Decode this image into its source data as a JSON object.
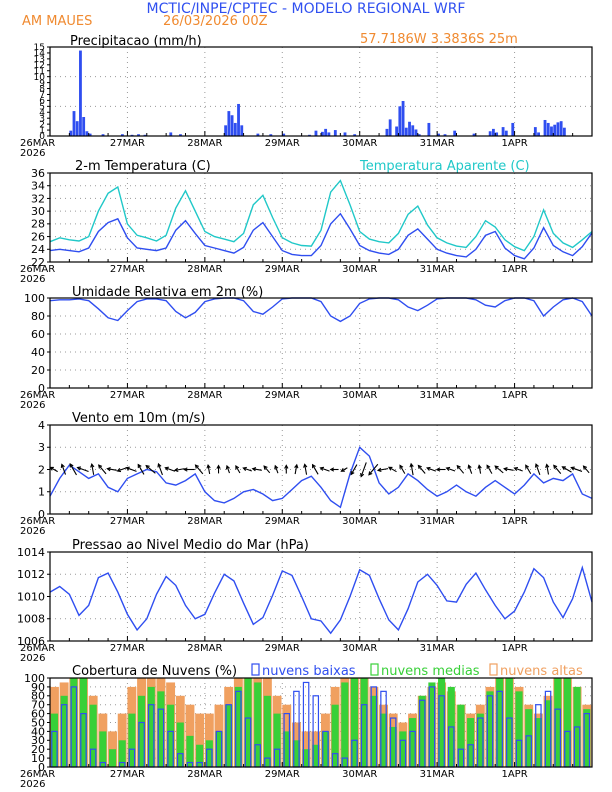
{
  "header": {
    "title": "MCTIC/INPE/CPTEC - MODELO REGIONAL WRF",
    "location": "AM MAUES",
    "run_time": "26/03/2026 00Z",
    "coords": "57.7186W 3.3836S 25m"
  },
  "colors": {
    "title": "#3050f0",
    "orange": "#f08a30",
    "blue": "#2f4ef0",
    "cyan": "#20c8c8",
    "green": "#38d038",
    "dark_orange": "#f0a060",
    "black": "#000000"
  },
  "time_axis": {
    "labels": [
      "26MAR",
      "27MAR",
      "28MAR",
      "29MAR",
      "30MAR",
      "31MAR",
      "1APR"
    ],
    "year_label": "2026",
    "start_hour": 0,
    "end_hour": 168
  },
  "chart_data": [
    {
      "id": "precip",
      "type": "bar",
      "title": "Precipitacao (mm/h)",
      "ylim": [
        0,
        15
      ],
      "yticks": [
        0,
        1,
        2,
        3,
        4,
        5,
        6,
        7,
        8,
        9,
        10,
        11,
        12,
        13,
        14,
        15
      ],
      "series": [
        {
          "name": "precip",
          "color": "#2f4ef0",
          "x": [
            6,
            7,
            8,
            9,
            10,
            11,
            12,
            16,
            22,
            25,
            27,
            29,
            37,
            40,
            54,
            55,
            56,
            57,
            58,
            59,
            64,
            68,
            72,
            80,
            82,
            84,
            85,
            86,
            88,
            91,
            94,
            104,
            105,
            107,
            108,
            109,
            110,
            111,
            112,
            113,
            114,
            117,
            120,
            122,
            125,
            131,
            136,
            137,
            138,
            140,
            141,
            143,
            150,
            151,
            153,
            154,
            155,
            156,
            157,
            158,
            159
          ],
          "values": [
            0.9,
            4.2,
            2.5,
            14.4,
            3.2,
            0.8,
            0.4,
            0.3,
            0.3,
            0.2,
            0.3,
            0.2,
            0.6,
            0.3,
            1.8,
            4.2,
            3.5,
            2.2,
            5.4,
            1.8,
            0.4,
            0.3,
            0.4,
            0.2,
            0.9,
            0.7,
            1.2,
            0.6,
            1.0,
            0.6,
            0.3,
            1.2,
            2.8,
            1.6,
            5.0,
            5.9,
            1.4,
            2.4,
            1.8,
            1.1,
            0.3,
            2.2,
            0.4,
            0.3,
            0.9,
            0.4,
            0.8,
            1.2,
            0.6,
            1.5,
            0.9,
            2.2,
            1.5,
            0.6,
            2.7,
            2.2,
            1.6,
            1.9,
            2.3,
            2.5,
            1.4
          ]
        }
      ]
    },
    {
      "id": "temp",
      "type": "line",
      "title": "2-m Temperatura (C)",
      "ylim": [
        22,
        36
      ],
      "yticks": [
        22,
        24,
        26,
        28,
        30,
        32,
        34,
        36
      ],
      "series": [
        {
          "name": "Temperatura Aparente (C)",
          "color": "#20c8c8",
          "x": [
            0,
            3,
            6,
            9,
            12,
            15,
            18,
            21,
            24,
            27,
            30,
            33,
            36,
            39,
            42,
            45,
            48,
            51,
            54,
            57,
            60,
            63,
            66,
            69,
            72,
            75,
            78,
            81,
            84,
            87,
            90,
            93,
            96,
            99,
            102,
            105,
            108,
            111,
            114,
            117,
            120,
            123,
            126,
            129,
            132,
            135,
            138,
            141,
            144,
            147,
            150,
            153,
            156,
            159,
            162,
            165,
            168
          ],
          "values": [
            25.2,
            25.8,
            25.5,
            25.3,
            26.0,
            30.0,
            32.8,
            33.8,
            28.0,
            26.2,
            25.8,
            25.3,
            26.2,
            30.5,
            33.2,
            30.0,
            26.8,
            26.0,
            25.6,
            25.2,
            26.5,
            31.0,
            32.5,
            29.0,
            25.8,
            25.0,
            24.6,
            24.5,
            27.0,
            33.0,
            34.8,
            31.0,
            26.8,
            25.6,
            25.2,
            25.0,
            26.5,
            29.5,
            30.8,
            27.8,
            25.8,
            25.0,
            24.5,
            24.3,
            26.0,
            28.5,
            27.5,
            25.5,
            24.4,
            23.8,
            26.0,
            30.2,
            26.5,
            25.0,
            24.3,
            25.5,
            26.8
          ]
        },
        {
          "name": "2-m Temperatura (C)",
          "color": "#2f4ef0",
          "x": [
            0,
            3,
            6,
            9,
            12,
            15,
            18,
            21,
            24,
            27,
            30,
            33,
            36,
            39,
            42,
            45,
            48,
            51,
            54,
            57,
            60,
            63,
            66,
            69,
            72,
            75,
            78,
            81,
            84,
            87,
            90,
            93,
            96,
            99,
            102,
            105,
            108,
            111,
            114,
            117,
            120,
            123,
            126,
            129,
            132,
            135,
            138,
            141,
            144,
            147,
            150,
            153,
            156,
            159,
            162,
            165,
            168
          ],
          "values": [
            23.8,
            24.0,
            23.8,
            23.6,
            24.2,
            26.8,
            28.2,
            28.8,
            25.8,
            24.2,
            24.0,
            23.8,
            24.2,
            27.0,
            28.5,
            26.5,
            24.6,
            24.2,
            23.8,
            23.4,
            24.3,
            27.0,
            28.2,
            26.0,
            23.8,
            23.2,
            23.0,
            23.0,
            24.6,
            28.0,
            29.6,
            27.2,
            24.6,
            23.8,
            23.4,
            23.2,
            24.0,
            26.2,
            27.2,
            25.6,
            24.0,
            23.4,
            23.0,
            22.8,
            24.0,
            26.2,
            26.8,
            24.2,
            23.0,
            22.5,
            24.2,
            27.4,
            24.6,
            23.6,
            23.0,
            24.4,
            26.6
          ]
        }
      ]
    },
    {
      "id": "rh",
      "type": "line",
      "title": "Umidade Relativa em 2m (%)",
      "ylim": [
        0,
        100
      ],
      "yticks": [
        0,
        20,
        40,
        60,
        80,
        100
      ],
      "series": [
        {
          "name": "rh",
          "color": "#2f4ef0",
          "x": [
            0,
            3,
            6,
            9,
            12,
            15,
            18,
            21,
            24,
            27,
            30,
            33,
            36,
            39,
            42,
            45,
            48,
            51,
            54,
            57,
            60,
            63,
            66,
            69,
            72,
            75,
            78,
            81,
            84,
            87,
            90,
            93,
            96,
            99,
            102,
            105,
            108,
            111,
            114,
            117,
            120,
            123,
            126,
            129,
            132,
            135,
            138,
            141,
            144,
            147,
            150,
            153,
            156,
            159,
            162,
            165,
            168
          ],
          "values": [
            97,
            98,
            98,
            99,
            97,
            88,
            78,
            75,
            86,
            96,
            99,
            99,
            97,
            85,
            78,
            84,
            96,
            99,
            100,
            100,
            97,
            85,
            82,
            90,
            99,
            100,
            100,
            100,
            96,
            80,
            74,
            80,
            94,
            99,
            100,
            100,
            98,
            90,
            86,
            92,
            99,
            100,
            100,
            100,
            98,
            92,
            90,
            97,
            100,
            100,
            97,
            80,
            90,
            98,
            100,
            96,
            80
          ]
        }
      ]
    },
    {
      "id": "wind",
      "type": "line",
      "title": "Vento em 10m (m/s)",
      "ylim": [
        0,
        4
      ],
      "yticks": [
        0,
        1,
        2,
        3,
        4
      ],
      "series": [
        {
          "name": "wind",
          "color": "#2f4ef0",
          "x": [
            0,
            3,
            6,
            9,
            12,
            15,
            18,
            21,
            24,
            27,
            30,
            33,
            36,
            39,
            42,
            45,
            48,
            51,
            54,
            57,
            60,
            63,
            66,
            69,
            72,
            75,
            78,
            81,
            84,
            87,
            90,
            93,
            96,
            99,
            102,
            105,
            108,
            111,
            114,
            117,
            120,
            123,
            126,
            129,
            132,
            135,
            138,
            141,
            144,
            147,
            150,
            153,
            156,
            159,
            162,
            165,
            168
          ],
          "values": [
            0.8,
            1.6,
            2.2,
            1.9,
            1.6,
            1.8,
            1.2,
            1.0,
            1.6,
            1.8,
            2.0,
            1.9,
            1.4,
            1.3,
            1.5,
            1.8,
            1.0,
            0.6,
            0.5,
            0.7,
            1.0,
            1.1,
            0.9,
            0.6,
            0.7,
            1.1,
            1.5,
            1.7,
            1.2,
            0.6,
            0.3,
            1.8,
            3.0,
            2.6,
            1.4,
            0.9,
            1.2,
            1.8,
            1.5,
            1.1,
            0.8,
            1.0,
            1.3,
            1.0,
            0.8,
            1.2,
            1.5,
            1.2,
            0.9,
            1.3,
            1.8,
            1.4,
            1.6,
            1.5,
            1.8,
            0.9,
            0.7
          ]
        }
      ],
      "vector_directions_deg": [
        210,
        250,
        240,
        200,
        260,
        230,
        190,
        160,
        200,
        240,
        220,
        250,
        200,
        170,
        180,
        230,
        260,
        270,
        250,
        240,
        200,
        190,
        230,
        250,
        270,
        280,
        260,
        240,
        200,
        180,
        150,
        120,
        110,
        130,
        170,
        210,
        240,
        260,
        230,
        200,
        180,
        200,
        230,
        250,
        260,
        240,
        220,
        190,
        200,
        240,
        250,
        260,
        230,
        210,
        200,
        230,
        250
      ]
    },
    {
      "id": "pressure",
      "type": "line",
      "title": "Pressao ao Nivel Medio do Mar (hPa)",
      "ylim": [
        1006,
        1014
      ],
      "yticks": [
        1006,
        1008,
        1010,
        1012,
        1014
      ],
      "series": [
        {
          "name": "pressure",
          "color": "#2f4ef0",
          "x": [
            0,
            3,
            6,
            9,
            12,
            15,
            18,
            21,
            24,
            27,
            30,
            33,
            36,
            39,
            42,
            45,
            48,
            51,
            54,
            57,
            60,
            63,
            66,
            69,
            72,
            75,
            78,
            81,
            84,
            87,
            90,
            93,
            96,
            99,
            102,
            105,
            108,
            111,
            114,
            117,
            120,
            123,
            126,
            129,
            132,
            135,
            138,
            141,
            144,
            147,
            150,
            153,
            156,
            159,
            162,
            165,
            168
          ],
          "values": [
            1010.4,
            1010.9,
            1010.2,
            1008.3,
            1009.2,
            1011.7,
            1012.1,
            1010.4,
            1008.4,
            1007.0,
            1008.0,
            1010.2,
            1011.8,
            1011.0,
            1009.2,
            1008.0,
            1008.4,
            1010.3,
            1012.0,
            1011.4,
            1009.4,
            1007.5,
            1008.1,
            1010.1,
            1012.3,
            1011.9,
            1010.0,
            1008.0,
            1007.8,
            1006.7,
            1007.9,
            1010.0,
            1012.4,
            1011.9,
            1009.8,
            1007.9,
            1007.0,
            1008.9,
            1011.3,
            1012.0,
            1011.0,
            1009.6,
            1009.5,
            1011.1,
            1012.1,
            1010.6,
            1009.2,
            1008.0,
            1008.7,
            1010.4,
            1012.5,
            1011.7,
            1009.5,
            1008.1,
            1009.8,
            1012.6,
            1009.5
          ]
        }
      ]
    },
    {
      "id": "clouds",
      "type": "bar",
      "title": "Cobertura de Nuvens (%)",
      "ylim": [
        0,
        100
      ],
      "yticks": [
        0,
        10,
        20,
        30,
        40,
        50,
        60,
        70,
        80,
        90,
        100
      ],
      "legend": [
        "nuvens baixas",
        "nuvens medias",
        "nuvens altas"
      ],
      "x": [
        0,
        3,
        6,
        9,
        12,
        15,
        18,
        21,
        24,
        27,
        30,
        33,
        36,
        39,
        42,
        45,
        48,
        51,
        54,
        57,
        60,
        63,
        66,
        69,
        72,
        75,
        78,
        81,
        84,
        87,
        90,
        93,
        96,
        99,
        102,
        105,
        108,
        111,
        114,
        117,
        120,
        123,
        126,
        129,
        132,
        135,
        138,
        141,
        144,
        147,
        150,
        153,
        156,
        159,
        162,
        165
      ],
      "series": [
        {
          "name": "nuvens altas",
          "color": "#f0a060",
          "values": [
            90,
            95,
            100,
            100,
            80,
            60,
            40,
            60,
            90,
            100,
            100,
            100,
            95,
            80,
            70,
            60,
            60,
            70,
            90,
            100,
            100,
            100,
            100,
            80,
            70,
            50,
            40,
            40,
            60,
            90,
            100,
            100,
            100,
            90,
            70,
            60,
            50,
            60,
            80,
            90,
            95,
            85,
            70,
            60,
            70,
            90,
            100,
            100,
            90,
            70,
            60,
            80,
            100,
            100,
            90,
            70
          ]
        },
        {
          "name": "nuvens medias",
          "color": "#38d038",
          "values": [
            60,
            80,
            100,
            100,
            70,
            40,
            20,
            30,
            60,
            80,
            90,
            85,
            70,
            50,
            35,
            25,
            30,
            40,
            70,
            90,
            100,
            95,
            80,
            60,
            40,
            30,
            20,
            25,
            40,
            70,
            95,
            100,
            100,
            80,
            60,
            45,
            40,
            55,
            80,
            95,
            100,
            90,
            70,
            55,
            60,
            85,
            100,
            100,
            85,
            65,
            55,
            75,
            100,
            100,
            90,
            65
          ]
        },
        {
          "name": "nuvens baixas",
          "color": "#2f4ef0",
          "values": [
            40,
            70,
            90,
            60,
            20,
            5,
            0,
            5,
            20,
            50,
            70,
            65,
            40,
            15,
            5,
            5,
            20,
            40,
            70,
            85,
            55,
            25,
            10,
            20,
            60,
            85,
            95,
            80,
            40,
            15,
            10,
            30,
            70,
            90,
            85,
            55,
            30,
            40,
            75,
            90,
            80,
            45,
            20,
            25,
            55,
            80,
            85,
            55,
            30,
            35,
            70,
            85,
            65,
            40,
            45,
            60
          ]
        }
      ]
    }
  ]
}
